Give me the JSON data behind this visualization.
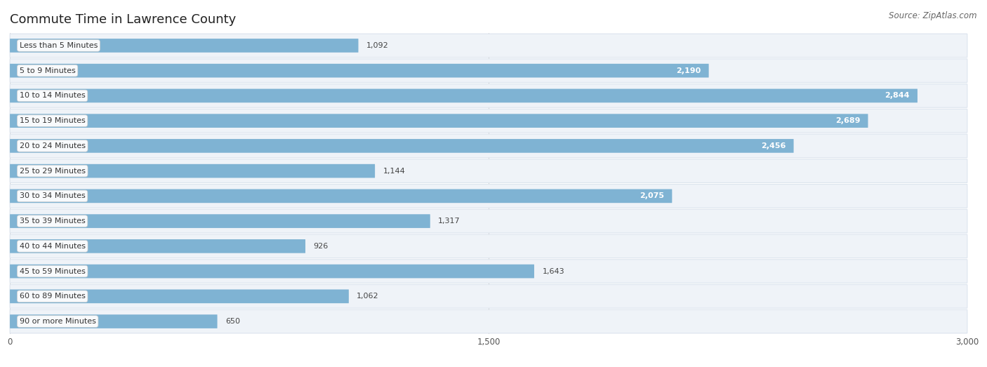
{
  "title": "Commute Time in Lawrence County",
  "source": "Source: ZipAtlas.com",
  "categories": [
    "Less than 5 Minutes",
    "5 to 9 Minutes",
    "10 to 14 Minutes",
    "15 to 19 Minutes",
    "20 to 24 Minutes",
    "25 to 29 Minutes",
    "30 to 34 Minutes",
    "35 to 39 Minutes",
    "40 to 44 Minutes",
    "45 to 59 Minutes",
    "60 to 89 Minutes",
    "90 or more Minutes"
  ],
  "values": [
    1092,
    2190,
    2844,
    2689,
    2456,
    1144,
    2075,
    1317,
    926,
    1643,
    1062,
    650
  ],
  "xlim": [
    0,
    3000
  ],
  "xticks": [
    0,
    1500,
    3000
  ],
  "bar_color": "#7fb3d3",
  "bar_color_dark": "#5a9abf",
  "row_bg": "#eff3f8",
  "row_border": "#dce4ee",
  "background_color": "#ffffff",
  "title_fontsize": 13,
  "source_fontsize": 8.5,
  "label_fontsize": 8,
  "value_fontsize": 8,
  "tick_fontsize": 8.5,
  "value_inside_threshold": 1800
}
